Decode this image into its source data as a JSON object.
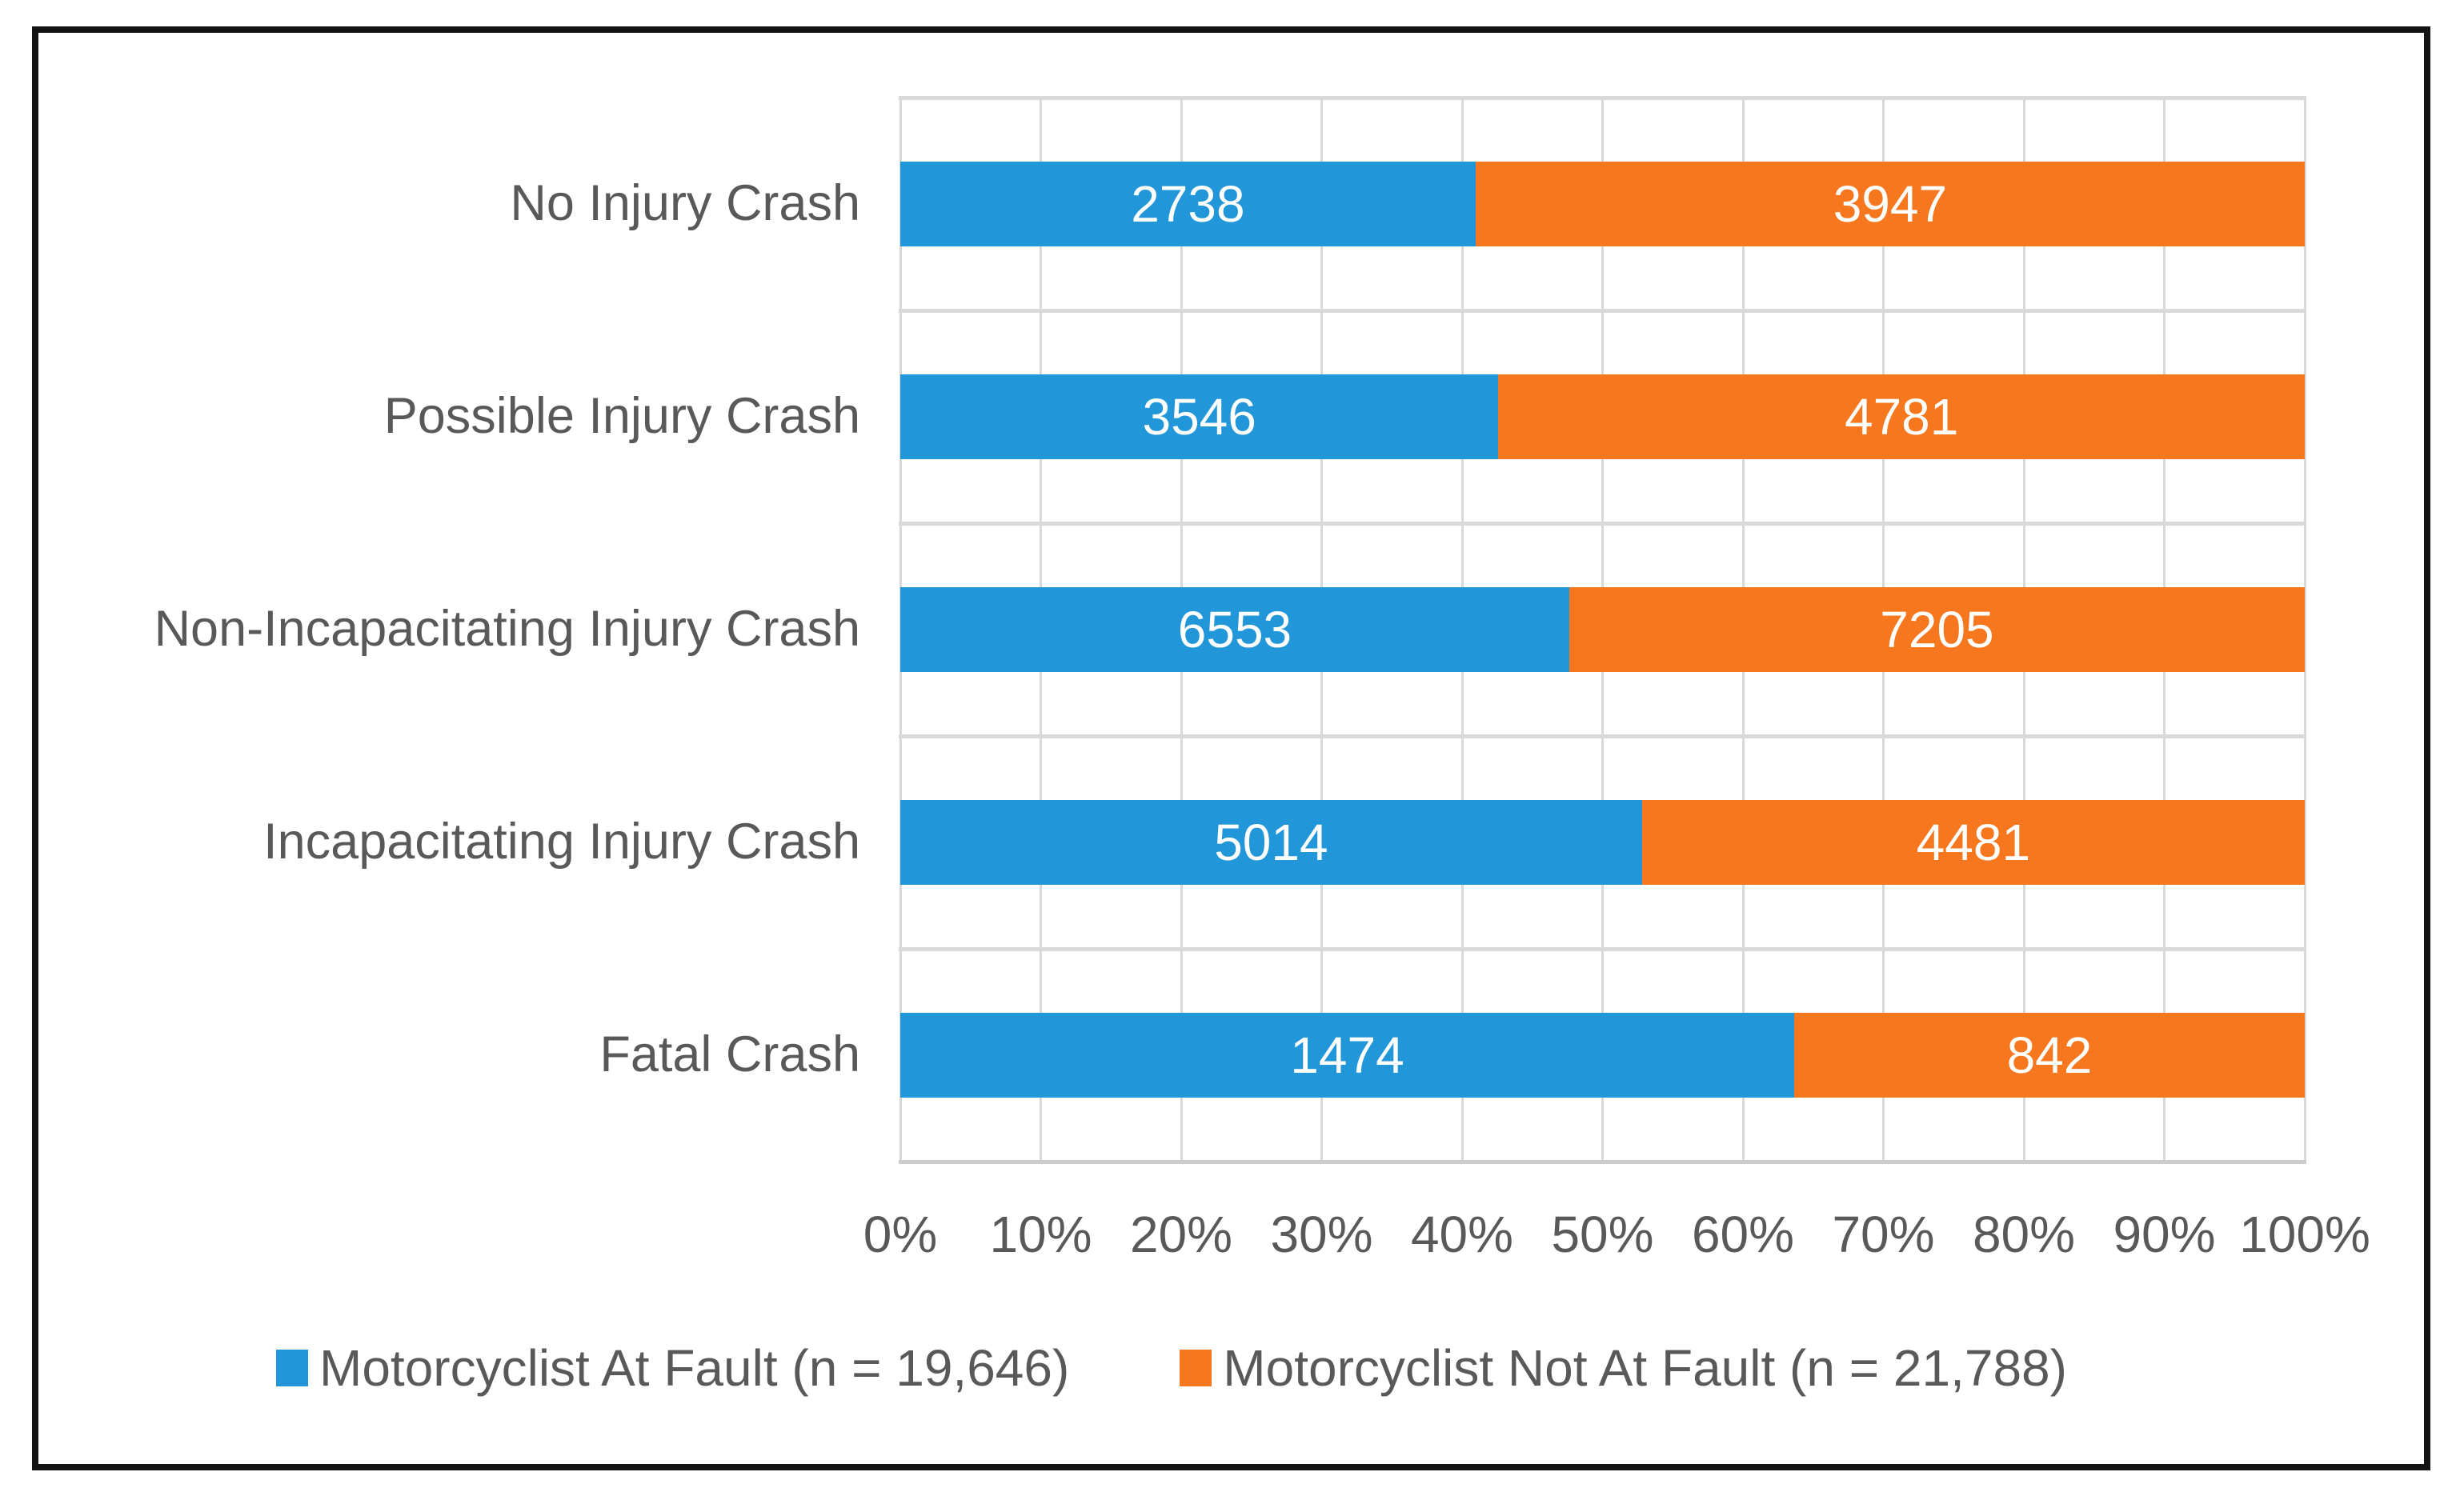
{
  "frame": {
    "border_color": "#141414",
    "background_color": "#ffffff"
  },
  "chart_data": {
    "type": "bar",
    "orientation": "horizontal",
    "stacking": "100%",
    "title": "",
    "xlabel": "",
    "ylabel": "",
    "grid": true,
    "legend_position": "bottom",
    "data_labels": "inside-center",
    "categories": [
      "No Injury Crash",
      "Possible Injury Crash",
      "Non-Incapacitating Injury Crash",
      "Incapacitating Injury Crash",
      "Fatal Crash"
    ],
    "series": [
      {
        "name": "Motorcyclist At Fault (n = 19,646)",
        "color": "#2196d8",
        "values": [
          2738,
          3546,
          6553,
          5014,
          1474
        ]
      },
      {
        "name": "Motorcyclist Not At Fault (n = 21,788)",
        "color": "#f7771e",
        "values": [
          3947,
          4781,
          7205,
          4481,
          842
        ]
      }
    ],
    "x_axis": {
      "min": "0%",
      "max": "100%",
      "tick_step": "10%",
      "tick_labels": [
        "0%",
        "10%",
        "20%",
        "30%",
        "40%",
        "50%",
        "60%",
        "70%",
        "80%",
        "90%",
        "100%"
      ]
    },
    "colors": {
      "gridline": "#d9d9d9",
      "axis_line": "#cccccc",
      "axis_text": "#595959",
      "data_label_text": "#ffffff"
    }
  }
}
